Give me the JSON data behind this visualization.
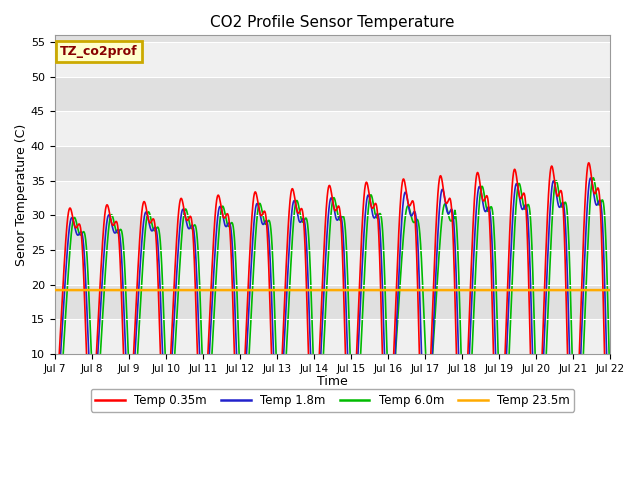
{
  "title": "CO2 Profile Sensor Temperature",
  "ylabel": "Senor Temperature (C)",
  "xlabel": "Time",
  "ylim": [
    10,
    55
  ],
  "xlim": [
    0,
    15
  ],
  "x_tick_labels": [
    "Jul 7",
    "Jul 8",
    "Jul 9",
    "Jul 10",
    "Jul 11",
    "Jul 12",
    "Jul 13",
    "Jul 14",
    "Jul 15",
    "Jul 16",
    "Jul 17",
    "Jul 18",
    "Jul 19",
    "Jul 20",
    "Jul 21",
    "Jul 22"
  ],
  "label_box_text": "TZ_co2prof",
  "label_box_bg": "#ffffcc",
  "label_box_text_color": "#880000",
  "label_box_edge_color": "#ccaa00",
  "legend_entries": [
    "Temp 0.35m",
    "Temp 1.8m",
    "Temp 6.0m",
    "Temp 23.5m"
  ],
  "line_colors": [
    "#ff0000",
    "#2222cc",
    "#00bb00",
    "#ffaa00"
  ],
  "temp_23_5_value": 19.2,
  "bg_color": "#ffffff",
  "band_color_light": "#f0f0f0",
  "band_color_dark": "#e0e0e0",
  "yticks": [
    10,
    15,
    20,
    25,
    30,
    35,
    40,
    45,
    50,
    55
  ]
}
